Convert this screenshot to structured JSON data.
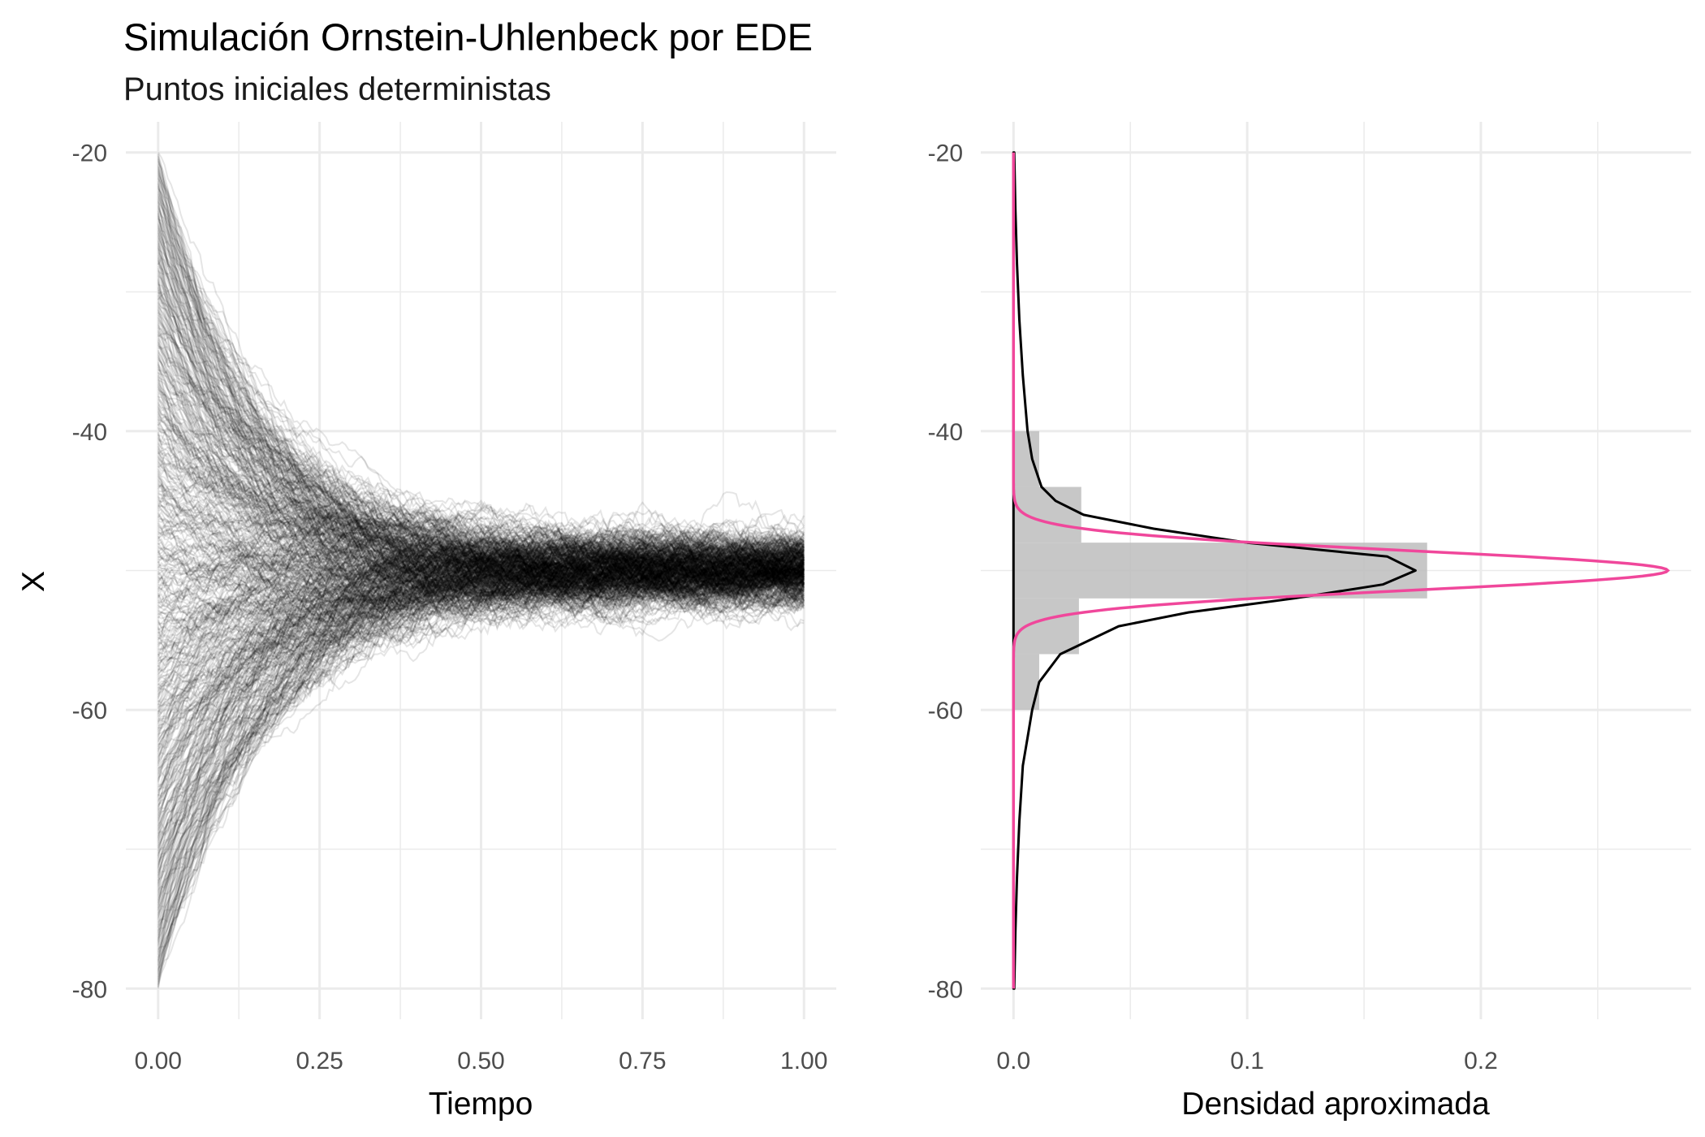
{
  "title": "Simulación Ornstein-Uhlenbeck por EDE",
  "subtitle": "Puntos iniciales deterministas",
  "colors": {
    "paths": "#000000",
    "histogram": "#bdbdbd",
    "empirical_density": "#000000",
    "theoretical_density": "#f0479b",
    "grid": "#ebebeb"
  },
  "chart_data": [
    {
      "type": "line",
      "xlabel": "Tiempo",
      "ylabel": "X",
      "xlim": [
        -0.05,
        1.05
      ],
      "ylim": [
        -82.2,
        -17.8
      ],
      "x_ticks": [
        0,
        0.25,
        0.5,
        0.75,
        1
      ],
      "x_tick_labels": [
        "0.00",
        "0.25",
        "0.50",
        "0.75",
        "1.00"
      ],
      "y_ticks": [
        -20,
        -40,
        -60,
        -80
      ],
      "y_tick_labels": [
        "-20",
        "-40",
        "-60",
        "-80"
      ],
      "grid": true,
      "paths": {
        "count": 500,
        "start_range": [
          -80,
          -20
        ],
        "mean_level": -50,
        "end_range": [
          -54,
          -46
        ]
      }
    },
    {
      "type": "area",
      "xlabel": "Densidad aproximada",
      "ylabel": "",
      "xlim": [
        -0.014,
        0.29
      ],
      "ylim": [
        -82.2,
        -17.8
      ],
      "x_ticks": [
        0,
        0.1,
        0.2
      ],
      "x_tick_labels": [
        "0.0",
        "0.1",
        "0.2"
      ],
      "y_ticks": [
        -20,
        -40,
        -60,
        -80
      ],
      "y_tick_labels": [
        "-20",
        "-40",
        "-60",
        "-80"
      ],
      "grid": true,
      "histogram": {
        "bin_width": 4,
        "bins": [
          {
            "y0": -60,
            "y1": -56,
            "density": 0.011
          },
          {
            "y0": -56,
            "y1": -52,
            "density": 0.028
          },
          {
            "y0": -52,
            "y1": -48,
            "density": 0.177
          },
          {
            "y0": -48,
            "y1": -44,
            "density": 0.029
          },
          {
            "y0": -44,
            "y1": -40,
            "density": 0.011
          }
        ]
      },
      "series": [
        {
          "kind": "empirical",
          "points": [
            [
              -80,
              0.0003
            ],
            [
              -76,
              0.0008
            ],
            [
              -72,
              0.0015
            ],
            [
              -68,
              0.0025
            ],
            [
              -64,
              0.004
            ],
            [
              -62,
              0.006
            ],
            [
              -60,
              0.008
            ],
            [
              -58,
              0.011
            ],
            [
              -56,
              0.02
            ],
            [
              -54,
              0.045
            ],
            [
              -53,
              0.075
            ],
            [
              -52,
              0.12
            ],
            [
              -51,
              0.158
            ],
            [
              -50,
              0.172
            ],
            [
              -49,
              0.16
            ],
            [
              -48,
              0.1
            ],
            [
              -47,
              0.06
            ],
            [
              -46,
              0.03
            ],
            [
              -45,
              0.018
            ],
            [
              -44,
              0.012
            ],
            [
              -42,
              0.008
            ],
            [
              -40,
              0.006
            ],
            [
              -36,
              0.004
            ],
            [
              -32,
              0.0025
            ],
            [
              -28,
              0.0015
            ],
            [
              -24,
              0.0008
            ],
            [
              -20,
              0.0003
            ]
          ]
        },
        {
          "kind": "theoretical",
          "mean": -50,
          "sd": 1.42,
          "peak": 0.28
        }
      ]
    }
  ]
}
